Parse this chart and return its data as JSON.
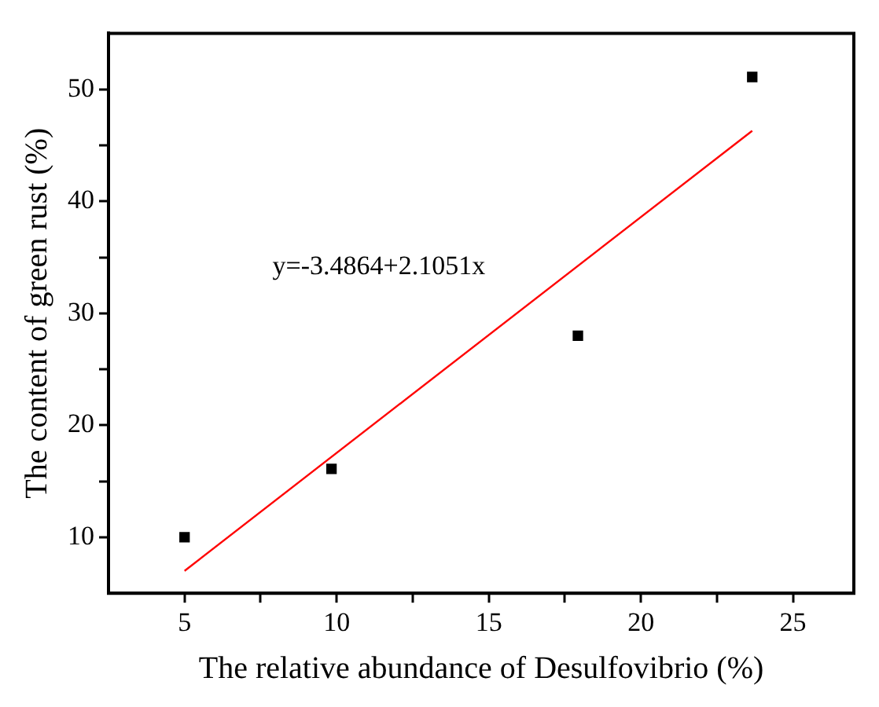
{
  "chart_data": {
    "type": "scatter",
    "xlabel": "The relative abundance of Desulfovibrio (%)",
    "ylabel": "The content of green rust (%)",
    "annotations": [
      "y=-3.4864+2.1051x"
    ],
    "series": [
      {
        "color": "#000000",
        "marker": "square",
        "x": [
          5.0,
          9.83,
          17.93,
          23.66
        ],
        "values": [
          10,
          16.1,
          28.0,
          51.1
        ]
      },
      {
        "type": "line",
        "color": "#ff0000",
        "marker": "none",
        "x": [
          5.0,
          23.66
        ],
        "values": [
          7.0,
          46.3
        ]
      }
    ],
    "xlim": [
      2.5,
      27
    ],
    "xticks": [
      5,
      {
        "value": 7.5,
        "label": null
      },
      10,
      {
        "value": 12.5,
        "label": null
      },
      15,
      {
        "value": 17.5,
        "label": null
      },
      20,
      {
        "value": 22.5,
        "label": null
      },
      25
    ],
    "ylim": [
      5,
      55
    ],
    "yticks": [
      10,
      {
        "value": 15,
        "label": null
      },
      20,
      {
        "value": 25,
        "label": null
      },
      30,
      {
        "value": 35,
        "label": null
      },
      40,
      {
        "value": 45,
        "label": null
      },
      50
    ],
    "grid": false,
    "legend": false
  }
}
